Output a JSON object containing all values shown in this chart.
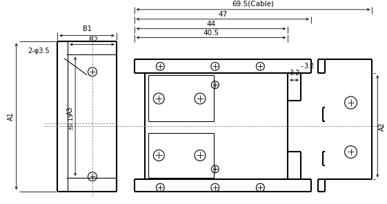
{
  "bg_color": "#ffffff",
  "line_color": "#000000",
  "lw_thick": 1.5,
  "lw_thin": 0.8,
  "lw_dim": 0.6,
  "figsize": [
    5.61,
    2.96
  ],
  "dpi": 100,
  "labels": {
    "A1": "A1",
    "A2": "A2",
    "A3": "A3",
    "B1": "B1",
    "B2": "B2",
    "hole": "2-φ3.5",
    "d69": "69.5(Cable)",
    "d47": "47",
    "d44": "44",
    "d405": "40.5",
    "d32": "3.2",
    "pm": "±0.15"
  }
}
